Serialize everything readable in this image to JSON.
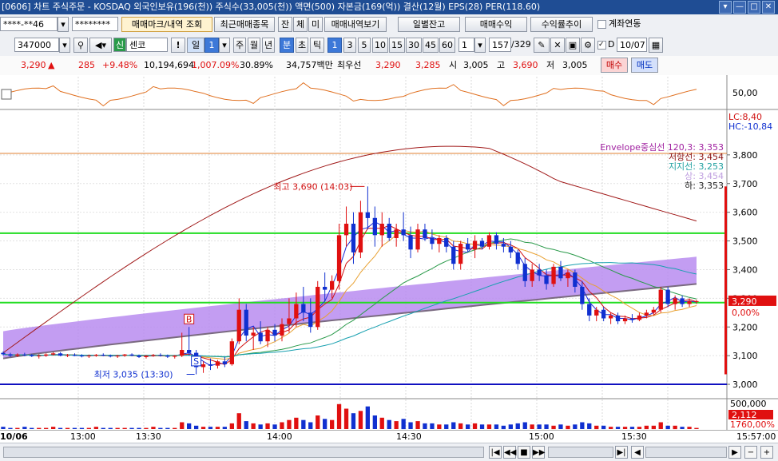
{
  "window": {
    "title": "[0606] 차트 주식주문 - KOSDAQ 외국인보유(196(천)) 주식수(33,005(천)) 액면(500) 자본금(169(억)) 결산(12월) EPS(28) PER(118.60)",
    "controls": [
      "▾",
      "—",
      "□",
      "✕"
    ]
  },
  "toolbar1": {
    "account": "****-**46",
    "password": "********",
    "tabs": [
      {
        "label": "매매마크/내역 조회",
        "selected": true
      },
      {
        "label": "최근매매종목",
        "selected": false
      },
      {
        "label": "잔",
        "selected": false
      },
      {
        "label": "체",
        "selected": false
      },
      {
        "label": "미",
        "selected": false
      },
      {
        "label": "매매내역보기",
        "selected": false
      }
    ],
    "buttons": [
      "일별잔고",
      "매매수익",
      "수익률추이"
    ],
    "checkbox_label": "계좌연동"
  },
  "toolbar2": {
    "code": "347000",
    "badge": "신",
    "name": "센코",
    "period_value": "1",
    "periods": [
      "주",
      "월",
      "년",
      "분",
      "초",
      "틱"
    ],
    "period_selected": "분",
    "intervals": [
      "1",
      "3",
      "5",
      "10",
      "15",
      "30",
      "45",
      "60"
    ],
    "interval_selected": "1",
    "count": "1",
    "count_display": "157",
    "count_total": "/329",
    "date": "10/07",
    "d_label": "D"
  },
  "quote": {
    "price": "3,290",
    "arrow": "▲",
    "change": "285",
    "change_pct": "+9.48%",
    "volume": "10,194,694",
    "volume_pct": "1,007.09%",
    "turnover": "30.89%",
    "amount": "34,757백만",
    "best_label": "최우선",
    "best_ask": "3,290",
    "best_bid": "3,285",
    "open_label": "시",
    "open": "3,005",
    "high_label": "고",
    "high": "3,690",
    "low_label": "저",
    "low": "3,005",
    "buy_button": "매수",
    "sell_button": "매도"
  },
  "chart_data": {
    "type": "candlestick",
    "ylim": [
      2950,
      3950
    ],
    "y_ticks": [
      "3,800",
      "3,700",
      "3,600",
      "3,500",
      "3,400",
      "3,300",
      "3,200",
      "3,100",
      "3,000"
    ],
    "x_ticks": [
      "10/06",
      "13:00",
      "13:30",
      "14:00",
      "14:30",
      "15:00",
      "15:30",
      "15:57:00"
    ],
    "indicator_tick": "50,00",
    "volume_tick": "500,000",
    "lc_label": "LC:8,40",
    "hc_label": "HC:-10,84",
    "right_price": "3,290",
    "right_pct": "0,00%",
    "volume_value": "2,112",
    "volume_pct": "1760,00%",
    "annotations": {
      "high": "최고 3,690 (14:03)",
      "low": "최저 3,035 (13:30)"
    },
    "envelope_legend": [
      {
        "label": "Envelope중심선 120,3: 3,353",
        "color": "#a020a0"
      },
      {
        "label": "저항선: 3,454",
        "color": "#8a1010"
      },
      {
        "label": "지지선: 3,253",
        "color": "#20a0a0"
      },
      {
        "label": "상: 3,454",
        "color": "#c0a0e0"
      },
      {
        "label": "하: 3,353",
        "color": "#202020"
      }
    ],
    "horizontal_lines": [
      {
        "value": 3527,
        "color": "#22dd22"
      },
      {
        "value": 3285,
        "color": "#22dd22"
      },
      {
        "value": 3000,
        "color": "#1010c0"
      },
      {
        "value": 3805,
        "color": "#e08030"
      }
    ],
    "markers": [
      "B",
      "S"
    ],
    "candles": [
      [
        3110,
        3115,
        3100,
        3105
      ],
      [
        3105,
        3110,
        3095,
        3100
      ],
      [
        3100,
        3108,
        3095,
        3104
      ],
      [
        3104,
        3110,
        3098,
        3102
      ],
      [
        3102,
        3106,
        3095,
        3098
      ],
      [
        3098,
        3105,
        3090,
        3100
      ],
      [
        3100,
        3108,
        3096,
        3104
      ],
      [
        3104,
        3112,
        3100,
        3108
      ],
      [
        3108,
        3112,
        3098,
        3100
      ],
      [
        3100,
        3106,
        3095,
        3102
      ],
      [
        3102,
        3108,
        3098,
        3100
      ],
      [
        3100,
        3105,
        3094,
        3098
      ],
      [
        3098,
        3104,
        3092,
        3100
      ],
      [
        3100,
        3106,
        3096,
        3103
      ],
      [
        3103,
        3108,
        3098,
        3100
      ],
      [
        3100,
        3104,
        3094,
        3097
      ],
      [
        3097,
        3103,
        3092,
        3100
      ],
      [
        3100,
        3106,
        3096,
        3104
      ],
      [
        3104,
        3108,
        3098,
        3100
      ],
      [
        3100,
        3104,
        3092,
        3095
      ],
      [
        3095,
        3102,
        3090,
        3100
      ],
      [
        3100,
        3106,
        3096,
        3102
      ],
      [
        3102,
        3108,
        3097,
        3100
      ],
      [
        3100,
        3104,
        3092,
        3096
      ],
      [
        3096,
        3102,
        3090,
        3100
      ],
      [
        3100,
        3180,
        3095,
        3120
      ],
      [
        3120,
        3200,
        3100,
        3110
      ],
      [
        3110,
        3120,
        3035,
        3060
      ],
      [
        3060,
        3080,
        3040,
        3070
      ],
      [
        3070,
        3090,
        3050,
        3065
      ],
      [
        3065,
        3085,
        3055,
        3080
      ],
      [
        3080,
        3095,
        3060,
        3070
      ],
      [
        3070,
        3160,
        3065,
        3150
      ],
      [
        3150,
        3300,
        3140,
        3260
      ],
      [
        3260,
        3280,
        3150,
        3170
      ],
      [
        3170,
        3200,
        3120,
        3180
      ],
      [
        3180,
        3220,
        3140,
        3150
      ],
      [
        3150,
        3200,
        3130,
        3190
      ],
      [
        3190,
        3210,
        3150,
        3170
      ],
      [
        3170,
        3230,
        3150,
        3210
      ],
      [
        3210,
        3300,
        3180,
        3230
      ],
      [
        3230,
        3320,
        3200,
        3280
      ],
      [
        3280,
        3340,
        3220,
        3250
      ],
      [
        3250,
        3300,
        3180,
        3200
      ],
      [
        3200,
        3360,
        3190,
        3340
      ],
      [
        3340,
        3390,
        3290,
        3330
      ],
      [
        3330,
        3380,
        3300,
        3360
      ],
      [
        3360,
        3560,
        3330,
        3520
      ],
      [
        3520,
        3620,
        3480,
        3560
      ],
      [
        3560,
        3600,
        3420,
        3460
      ],
      [
        3460,
        3640,
        3440,
        3600
      ],
      [
        3600,
        3690,
        3540,
        3580
      ],
      [
        3580,
        3620,
        3480,
        3520
      ],
      [
        3520,
        3600,
        3480,
        3560
      ],
      [
        3560,
        3580,
        3500,
        3510
      ],
      [
        3510,
        3560,
        3480,
        3540
      ],
      [
        3540,
        3600,
        3500,
        3520
      ],
      [
        3520,
        3550,
        3440,
        3470
      ],
      [
        3470,
        3560,
        3460,
        3540
      ],
      [
        3540,
        3560,
        3500,
        3510
      ],
      [
        3510,
        3540,
        3470,
        3490
      ],
      [
        3490,
        3520,
        3460,
        3510
      ],
      [
        3510,
        3520,
        3460,
        3480
      ],
      [
        3480,
        3500,
        3400,
        3420
      ],
      [
        3420,
        3500,
        3400,
        3490
      ],
      [
        3490,
        3510,
        3460,
        3470
      ],
      [
        3470,
        3520,
        3440,
        3500
      ],
      [
        3500,
        3510,
        3470,
        3480
      ],
      [
        3480,
        3530,
        3470,
        3520
      ],
      [
        3520,
        3530,
        3470,
        3490
      ],
      [
        3490,
        3510,
        3460,
        3480
      ],
      [
        3480,
        3500,
        3440,
        3460
      ],
      [
        3460,
        3470,
        3400,
        3420
      ],
      [
        3420,
        3440,
        3340,
        3360
      ],
      [
        3360,
        3420,
        3340,
        3400
      ],
      [
        3400,
        3420,
        3360,
        3380
      ],
      [
        3380,
        3400,
        3330,
        3350
      ],
      [
        3350,
        3420,
        3340,
        3410
      ],
      [
        3410,
        3430,
        3360,
        3370
      ],
      [
        3370,
        3400,
        3340,
        3390
      ],
      [
        3390,
        3400,
        3320,
        3340
      ],
      [
        3340,
        3360,
        3260,
        3280
      ],
      [
        3280,
        3300,
        3220,
        3240
      ],
      [
        3240,
        3270,
        3220,
        3260
      ],
      [
        3260,
        3270,
        3220,
        3230
      ],
      [
        3230,
        3250,
        3210,
        3240
      ],
      [
        3240,
        3250,
        3210,
        3220
      ],
      [
        3220,
        3240,
        3210,
        3230
      ],
      [
        3230,
        3245,
        3215,
        3225
      ],
      [
        3225,
        3250,
        3220,
        3240
      ],
      [
        3240,
        3260,
        3230,
        3250
      ],
      [
        3250,
        3270,
        3240,
        3260
      ],
      [
        3260,
        3340,
        3250,
        3330
      ],
      [
        3330,
        3340,
        3270,
        3280
      ],
      [
        3280,
        3310,
        3260,
        3300
      ],
      [
        3300,
        3310,
        3270,
        3280
      ],
      [
        3280,
        3300,
        3270,
        3290
      ],
      [
        3290,
        3295,
        3280,
        3290
      ]
    ],
    "volumes": [
      2,
      1,
      1,
      2,
      1,
      1,
      1,
      2,
      1,
      1,
      1,
      1,
      1,
      2,
      1,
      1,
      1,
      1,
      1,
      1,
      1,
      2,
      1,
      1,
      1,
      6,
      5,
      3,
      2,
      2,
      2,
      2,
      5,
      14,
      7,
      5,
      4,
      5,
      4,
      6,
      8,
      10,
      8,
      6,
      12,
      9,
      8,
      22,
      18,
      14,
      16,
      20,
      12,
      10,
      8,
      7,
      9,
      6,
      7,
      5,
      5,
      4,
      4,
      6,
      5,
      4,
      5,
      4,
      4,
      4,
      3,
      4,
      5,
      6,
      4,
      4,
      4,
      3,
      4,
      3,
      4,
      6,
      5,
      3,
      3,
      2,
      2,
      2,
      2,
      2,
      3,
      3,
      6,
      3,
      3,
      2,
      2,
      1
    ],
    "volume_ylim": [
      0,
      24
    ]
  },
  "scrollbar": {
    "buttons": [
      "|◀",
      "◀◀",
      "■",
      "▶▶",
      "▶|",
      "◀",
      "▶",
      "−",
      "+"
    ]
  }
}
